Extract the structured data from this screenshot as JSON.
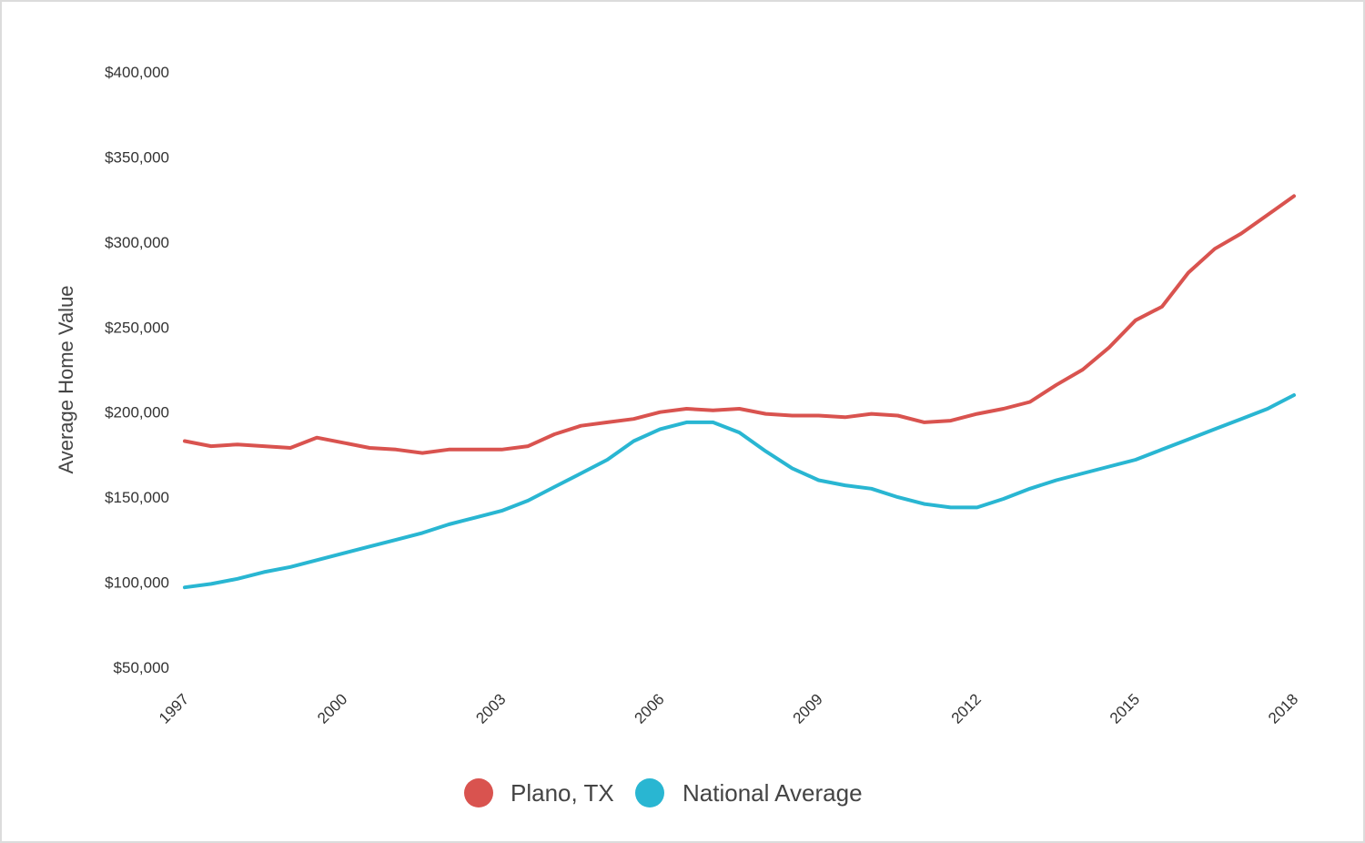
{
  "chart_data": {
    "type": "line",
    "ylabel": "Average Home Value",
    "xlabel": "",
    "xlim": [
      1997,
      2018
    ],
    "ylim": [
      50000,
      400000
    ],
    "y_ticks": [
      50000,
      100000,
      150000,
      200000,
      250000,
      300000,
      350000,
      400000
    ],
    "y_tick_labels": [
      "$50,000",
      "$100,000",
      "$150,000",
      "$200,000",
      "$250,000",
      "$300,000",
      "$350,000",
      "$400,000"
    ],
    "x_ticks": [
      1997,
      2000,
      2003,
      2006,
      2009,
      2012,
      2015,
      2018
    ],
    "x_tick_labels": [
      "1997",
      "2000",
      "2003",
      "2006",
      "2009",
      "2012",
      "2015",
      "2018"
    ],
    "grid": false,
    "legend_position": "bottom-center",
    "series": [
      {
        "name": "Plano, TX",
        "color": "#d9534f",
        "x": [
          1997,
          1997.5,
          1998,
          1998.5,
          1999,
          1999.5,
          2000,
          2000.5,
          2001,
          2001.5,
          2002,
          2002.5,
          2003,
          2003.5,
          2004,
          2004.5,
          2005,
          2005.5,
          2006,
          2006.5,
          2007,
          2007.5,
          2008,
          2008.5,
          2009,
          2009.5,
          2010,
          2010.5,
          2011,
          2011.5,
          2012,
          2012.5,
          2013,
          2013.5,
          2014,
          2014.5,
          2015,
          2015.5,
          2016,
          2016.5,
          2017,
          2017.5,
          2018
        ],
        "y": [
          183000,
          180000,
          181000,
          180000,
          179000,
          185000,
          182000,
          179000,
          178000,
          176000,
          178000,
          178000,
          178000,
          180000,
          187000,
          192000,
          194000,
          196000,
          200000,
          202000,
          201000,
          202000,
          199000,
          198000,
          198000,
          197000,
          199000,
          198000,
          194000,
          195000,
          199000,
          202000,
          206000,
          216000,
          225000,
          238000,
          254000,
          262000,
          282000,
          296000,
          305000,
          316000,
          327000
        ]
      },
      {
        "name": "National Average",
        "color": "#29b6d2",
        "x": [
          1997,
          1997.5,
          1998,
          1998.5,
          1999,
          1999.5,
          2000,
          2000.5,
          2001,
          2001.5,
          2002,
          2002.5,
          2003,
          2003.5,
          2004,
          2004.5,
          2005,
          2005.5,
          2006,
          2006.5,
          2007,
          2007.5,
          2008,
          2008.5,
          2009,
          2009.5,
          2010,
          2010.5,
          2011,
          2011.5,
          2012,
          2012.5,
          2013,
          2013.5,
          2014,
          2014.5,
          2015,
          2015.5,
          2016,
          2016.5,
          2017,
          2017.5,
          2018
        ],
        "y": [
          97000,
          99000,
          102000,
          106000,
          109000,
          113000,
          117000,
          121000,
          125000,
          129000,
          134000,
          138000,
          142000,
          148000,
          156000,
          164000,
          172000,
          183000,
          190000,
          194000,
          194000,
          188000,
          177000,
          167000,
          160000,
          157000,
          155000,
          150000,
          146000,
          144000,
          144000,
          149000,
          155000,
          160000,
          164000,
          168000,
          172000,
          178000,
          184000,
          190000,
          196000,
          202000,
          210000
        ]
      }
    ]
  }
}
